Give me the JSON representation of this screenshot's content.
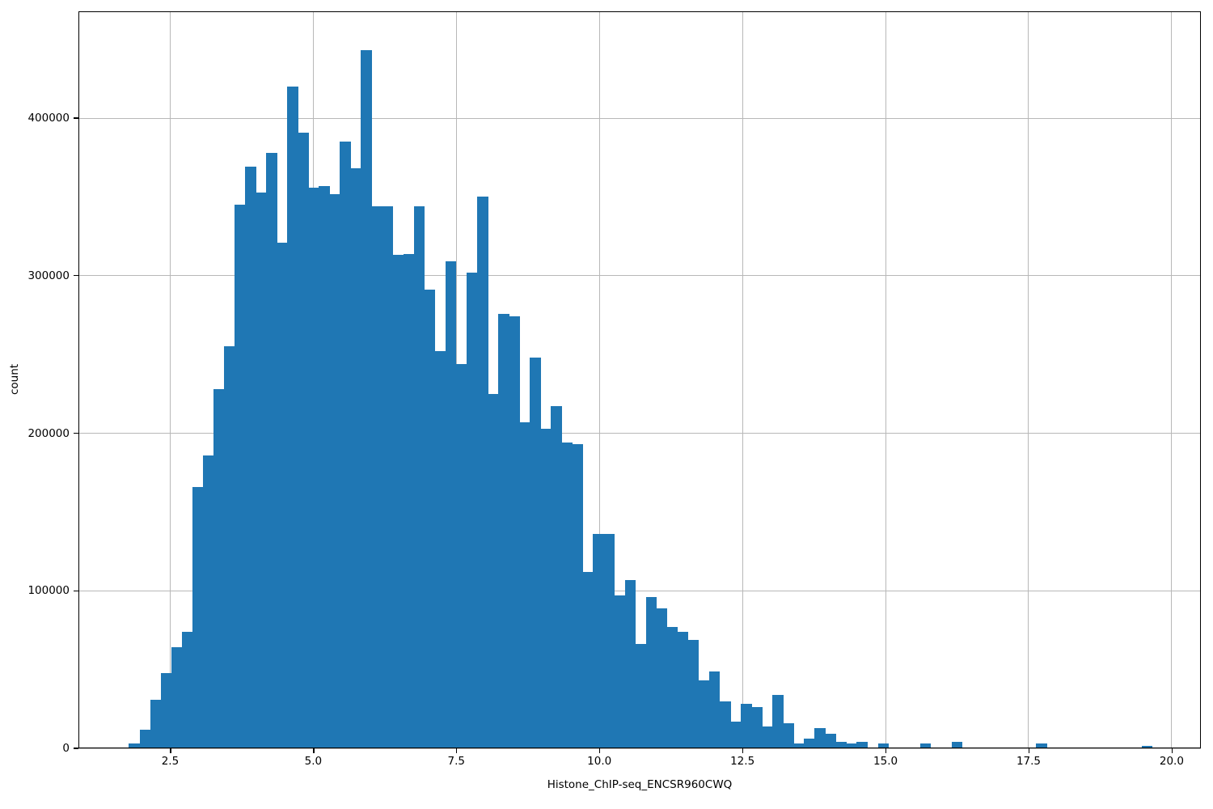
{
  "figure": {
    "bar_color": "#1f77b4",
    "grid_color": "#b8b8b8",
    "spine_color": "#000000",
    "background_color": "#ffffff"
  },
  "chart_data": {
    "type": "bar",
    "subtype": "histogram",
    "title": "",
    "xlabel": "Histone_ChIP-seq_ENCSR960CWQ",
    "ylabel": "count",
    "grid": true,
    "legend": false,
    "bin_start": 1.78,
    "bin_width": 0.1843,
    "counts": [
      3000,
      12000,
      31000,
      48000,
      64000,
      74000,
      166000,
      186000,
      228000,
      255000,
      345000,
      369000,
      353000,
      378000,
      321000,
      420000,
      391000,
      356000,
      357000,
      352000,
      385000,
      368000,
      443000,
      344000,
      344000,
      313000,
      314000,
      344000,
      291000,
      252000,
      309000,
      244000,
      302000,
      350000,
      225000,
      276000,
      274000,
      207000,
      248000,
      203000,
      217000,
      194000,
      193000,
      112000,
      136000,
      136000,
      97000,
      107000,
      66000,
      96000,
      89000,
      77000,
      74000,
      69000,
      43000,
      49000,
      30000,
      17000,
      28000,
      26000,
      14000,
      34000,
      16000,
      3000,
      6000,
      13000,
      9000,
      4000,
      3000,
      4000,
      0,
      3000,
      0,
      0,
      0,
      3000,
      0,
      0,
      4000,
      0,
      0,
      0,
      0,
      0,
      0,
      0,
      3000,
      0,
      0,
      0,
      0,
      0,
      0,
      0,
      0,
      0,
      1500
    ],
    "xlim": [
      0.897,
      20.51
    ],
    "ylim": [
      0,
      467800
    ],
    "xticks": [
      2.5,
      5.0,
      7.5,
      10.0,
      12.5,
      15.0,
      17.5,
      20.0
    ],
    "xtick_labels": [
      "2.5",
      "5.0",
      "7.5",
      "10.0",
      "12.5",
      "15.0",
      "17.5",
      "20.0"
    ],
    "yticks": [
      0,
      100000,
      200000,
      300000,
      400000
    ],
    "ytick_labels": [
      "0",
      "100000",
      "200000",
      "300000",
      "400000"
    ]
  }
}
